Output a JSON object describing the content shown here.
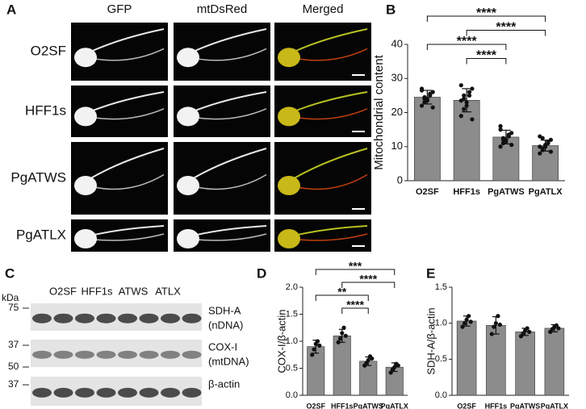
{
  "panels": {
    "a": "A",
    "b": "B",
    "c": "C",
    "d": "D",
    "e": "E"
  },
  "microscopy": {
    "columns": [
      "GFP",
      "mtDsRed",
      "Merged"
    ],
    "rows": [
      "O2SF",
      "HFF1s",
      "PgATWS",
      "PgATLX"
    ]
  },
  "western_blot": {
    "unit": "kDa",
    "lanes": [
      "O2SF",
      "HFF1s",
      "ATWS",
      "ATLX"
    ],
    "markers": [
      75,
      37,
      50,
      37
    ],
    "bands": [
      [
        "SDH-A",
        "(nDNA)"
      ],
      [
        "COX-I",
        "(mtDNA)"
      ],
      [
        "β-actin"
      ]
    ]
  },
  "chart_data": [
    {
      "type": "bar",
      "ylabel": "Mitochondrial content",
      "categories": [
        "O2SF",
        "HFF1s",
        "PgATWS",
        "PgATLX"
      ],
      "values": [
        24.5,
        23.6,
        12.8,
        10.3
      ],
      "errors": [
        2.0,
        3.4,
        2.0,
        1.6
      ],
      "points": [
        [
          22,
          23,
          24,
          25,
          26,
          27,
          24.5,
          23.5,
          25.5,
          21.5,
          26.5,
          24
        ],
        [
          19,
          21,
          23,
          25,
          27,
          28,
          24,
          22,
          26,
          18,
          23.5,
          25
        ],
        [
          10,
          11,
          12,
          13,
          14,
          15,
          12.5,
          11.5,
          13.5,
          10.5,
          16,
          12
        ],
        [
          8,
          9,
          10,
          11,
          12,
          13,
          9.5,
          10.5,
          11.5,
          8.5,
          10,
          12.5
        ]
      ],
      "color": "#8c8c8c",
      "ylim": [
        0,
        40
      ],
      "yticks": [
        0,
        10,
        20,
        30,
        40
      ],
      "significance": [
        {
          "label": "****",
          "from": "O2SF",
          "to": "PgATLX"
        },
        {
          "label": "****",
          "from": "HFF1s",
          "to": "PgATLX"
        },
        {
          "label": "****",
          "from": "O2SF",
          "to": "PgATWS"
        },
        {
          "label": "****",
          "from": "HFF1s",
          "to": "PgATWS"
        }
      ]
    },
    {
      "type": "bar",
      "ylabel": "COX-I/β-actin",
      "categories": [
        "O2SF",
        "HFF1s",
        "PgATWS",
        "PgATLX"
      ],
      "values": [
        0.9,
        1.1,
        0.63,
        0.52
      ],
      "errors": [
        0.12,
        0.12,
        0.08,
        0.08
      ],
      "points": [
        [
          0.75,
          0.85,
          0.95,
          1.0,
          0.92
        ],
        [
          0.98,
          1.05,
          1.15,
          1.25,
          1.1
        ],
        [
          0.55,
          0.6,
          0.65,
          0.72,
          0.68
        ],
        [
          0.42,
          0.48,
          0.52,
          0.58,
          0.55
        ]
      ],
      "color": "#8c8c8c",
      "ylim": [
        0,
        2
      ],
      "yticks": [
        {
          "value": 0,
          "label": "0.0"
        },
        {
          "value": 0.5,
          "label": "0.5"
        },
        {
          "value": 1,
          "label": "1.0"
        },
        {
          "value": 1.5,
          "label": "1.5"
        },
        {
          "value": 2,
          "label": "2.0"
        }
      ],
      "significance": [
        {
          "label": "***",
          "from": "O2SF",
          "to": "PgATLX"
        },
        {
          "label": "****",
          "from": "HFF1s",
          "to": "PgATLX"
        },
        {
          "label": "**",
          "from": "O2SF",
          "to": "PgATWS"
        },
        {
          "label": "****",
          "from": "HFF1s",
          "to": "PgATWS"
        }
      ]
    },
    {
      "type": "bar",
      "ylabel": "SDH-A/β-actin",
      "categories": [
        "O2SF",
        "HFF1s",
        "PgATWS",
        "PgATLX"
      ],
      "values": [
        1.03,
        0.97,
        0.88,
        0.93
      ],
      "errors": [
        0.07,
        0.12,
        0.05,
        0.05
      ],
      "points": [
        [
          0.95,
          1.0,
          1.05,
          1.1,
          1.02
        ],
        [
          0.85,
          0.95,
          1.0,
          1.1,
          0.98
        ],
        [
          0.82,
          0.86,
          0.9,
          0.93,
          0.88
        ],
        [
          0.88,
          0.92,
          0.95,
          0.97,
          0.93
        ]
      ],
      "color": "#8c8c8c",
      "ylim": [
        0,
        1.5
      ],
      "yticks": [
        {
          "value": 0,
          "label": "0.0"
        },
        {
          "value": 0.5,
          "label": "0.5"
        },
        {
          "value": 1,
          "label": "1.0"
        },
        {
          "value": 1.5,
          "label": "1.5"
        }
      ]
    }
  ]
}
